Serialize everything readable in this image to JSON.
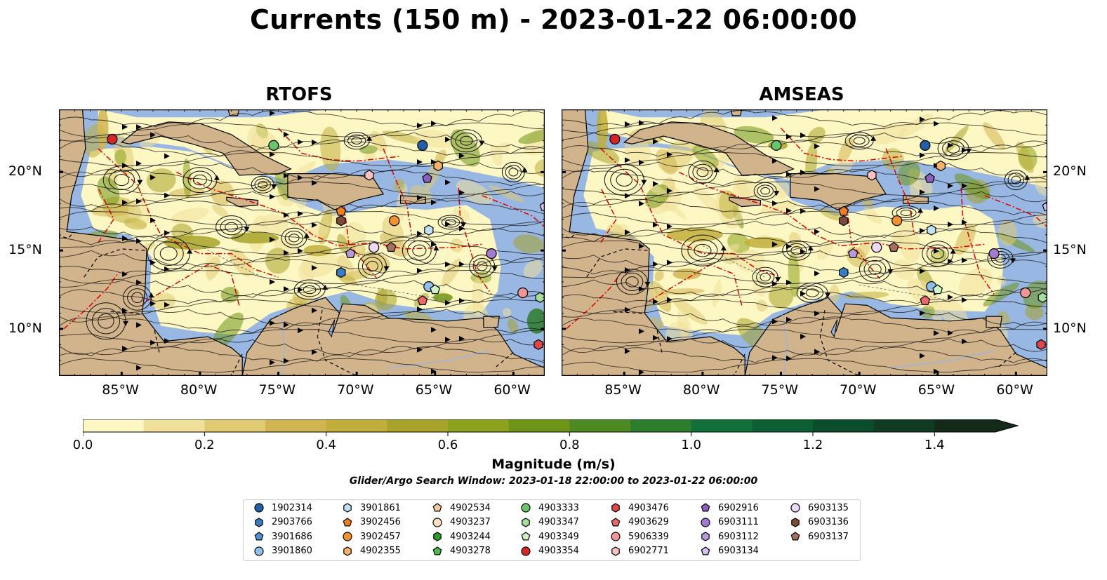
{
  "title": "Currents (150 m) - 2023-01-22 06:00:00",
  "panels": [
    {
      "title": "RTOFS"
    },
    {
      "title": "AMSEAS"
    }
  ],
  "axes": {
    "lon_ticks": [
      "85°W",
      "80°W",
      "75°W",
      "70°W",
      "65°W",
      "60°W"
    ],
    "lat_ticks": [
      "20°N",
      "15°N",
      "10°N"
    ]
  },
  "colorbar": {
    "label": "Magnitude (m/s)",
    "ticks": [
      "0.0",
      "0.2",
      "0.4",
      "0.6",
      "0.8",
      "1.0",
      "1.2",
      "1.4"
    ],
    "range": [
      0,
      1.5
    ],
    "extend": "max",
    "colors": [
      "#fdf7c3",
      "#f0e09a",
      "#e0cb74",
      "#d1b552",
      "#bfae3c",
      "#a7a32a",
      "#8da21c",
      "#6f9518",
      "#4d8a22",
      "#2c7d2c",
      "#12703a",
      "#0b5f33",
      "#0a4d2a",
      "#113a22",
      "#15291b"
    ]
  },
  "search_window": "Glider/Argo Search Window: 2023-01-18 22:00:00 to 2023-01-22 06:00:00",
  "legend": {
    "columns": [
      [
        {
          "id": "1902314",
          "marker": "circle",
          "color": "#1f5fa8"
        },
        {
          "id": "2903766",
          "marker": "hexagon",
          "color": "#3a7cc4"
        },
        {
          "id": "3901686",
          "marker": "pentagon",
          "color": "#4b92d6"
        },
        {
          "id": "3901860",
          "marker": "circle",
          "color": "#8fc0ec"
        }
      ],
      [
        {
          "id": "3901861",
          "marker": "hexagon",
          "color": "#bfe0f7"
        },
        {
          "id": "3902456",
          "marker": "pentagon",
          "color": "#f07f1e"
        },
        {
          "id": "3902457",
          "marker": "circle",
          "color": "#f2922f"
        },
        {
          "id": "4902355",
          "marker": "hexagon",
          "color": "#f6b26b"
        }
      ],
      [
        {
          "id": "4902534",
          "marker": "pentagon",
          "color": "#f8c99a"
        },
        {
          "id": "4903237",
          "marker": "circle",
          "color": "#fde0c4"
        },
        {
          "id": "4903244",
          "marker": "hexagon",
          "color": "#2e9a2e"
        },
        {
          "id": "4903278",
          "marker": "pentagon",
          "color": "#4dbb4d"
        }
      ],
      [
        {
          "id": "4903333",
          "marker": "circle",
          "color": "#6ac46a"
        },
        {
          "id": "4903347",
          "marker": "hexagon",
          "color": "#a6dea0"
        },
        {
          "id": "4903349",
          "marker": "pentagon",
          "color": "#cff2c8"
        },
        {
          "id": "4903354",
          "marker": "circle",
          "color": "#d62728"
        }
      ],
      [
        {
          "id": "4903476",
          "marker": "hexagon",
          "color": "#e0474a"
        },
        {
          "id": "4903629",
          "marker": "pentagon",
          "color": "#ea6a6b"
        },
        {
          "id": "5906339",
          "marker": "circle",
          "color": "#f19596"
        },
        {
          "id": "6902771",
          "marker": "hexagon",
          "color": "#f7c2c0"
        }
      ],
      [
        {
          "id": "6902916",
          "marker": "pentagon",
          "color": "#8b5ec0"
        },
        {
          "id": "6903111",
          "marker": "circle",
          "color": "#a27bd0"
        },
        {
          "id": "6903112",
          "marker": "hexagon",
          "color": "#b99ad9"
        },
        {
          "id": "6903134",
          "marker": "pentagon",
          "color": "#d3bff0"
        }
      ],
      [
        {
          "id": "6903135",
          "marker": "circle",
          "color": "#ecd8f7"
        },
        {
          "id": "6903136",
          "marker": "hexagon",
          "color": "#7c4a3a"
        },
        {
          "id": "6903137",
          "marker": "pentagon",
          "color": "#a7705c"
        }
      ]
    ]
  },
  "colors": {
    "ocean": "#98b7e3",
    "land": "#d2b48c",
    "eez": "#e00000",
    "streamline": "#111111"
  },
  "floats": [
    {
      "lon": -85.6,
      "lat": 22.1,
      "marker": "circle",
      "color": "#d62728"
    },
    {
      "lon": -75.3,
      "lat": 21.7,
      "marker": "circle",
      "color": "#6ac46a"
    },
    {
      "lon": -65.8,
      "lat": 21.7,
      "marker": "circle",
      "color": "#1f5fa8"
    },
    {
      "lon": -64.8,
      "lat": 20.4,
      "marker": "hexagon",
      "color": "#f6b26b"
    },
    {
      "lon": -69.2,
      "lat": 19.8,
      "marker": "hexagon",
      "color": "#f7c2c0"
    },
    {
      "lon": -65.5,
      "lat": 19.6,
      "marker": "pentagon",
      "color": "#8b5ec0"
    },
    {
      "lon": -71.0,
      "lat": 17.5,
      "marker": "pentagon",
      "color": "#f07f1e"
    },
    {
      "lon": -71.0,
      "lat": 16.9,
      "marker": "hexagon",
      "color": "#7c4a3a"
    },
    {
      "lon": -67.6,
      "lat": 16.9,
      "marker": "circle",
      "color": "#f2922f"
    },
    {
      "lon": -65.4,
      "lat": 16.3,
      "marker": "hexagon",
      "color": "#bfe0f7"
    },
    {
      "lon": -58.0,
      "lat": 17.8,
      "marker": "pentagon",
      "color": "#d3bff0"
    },
    {
      "lon": -68.9,
      "lat": 15.2,
      "marker": "circle",
      "color": "#ecd8f7"
    },
    {
      "lon": -67.8,
      "lat": 15.2,
      "marker": "pentagon",
      "color": "#a7705c"
    },
    {
      "lon": -70.4,
      "lat": 14.8,
      "marker": "pentagon",
      "color": "#b99ad9"
    },
    {
      "lon": -61.4,
      "lat": 14.8,
      "marker": "circle",
      "color": "#a27bd0"
    },
    {
      "lon": -71.0,
      "lat": 13.6,
      "marker": "hexagon",
      "color": "#3a7cc4"
    },
    {
      "lon": -65.4,
      "lat": 12.7,
      "marker": "circle",
      "color": "#8fc0ec"
    },
    {
      "lon": -65.0,
      "lat": 12.5,
      "marker": "pentagon",
      "color": "#cff2c8"
    },
    {
      "lon": -59.4,
      "lat": 12.3,
      "marker": "circle",
      "color": "#f19596"
    },
    {
      "lon": -65.8,
      "lat": 11.8,
      "marker": "pentagon",
      "color": "#ea6a6b"
    },
    {
      "lon": -58.3,
      "lat": 12.0,
      "marker": "hexagon",
      "color": "#a6dea0"
    },
    {
      "lon": -58.4,
      "lat": 9.0,
      "marker": "hexagon",
      "color": "#e0474a"
    }
  ]
}
